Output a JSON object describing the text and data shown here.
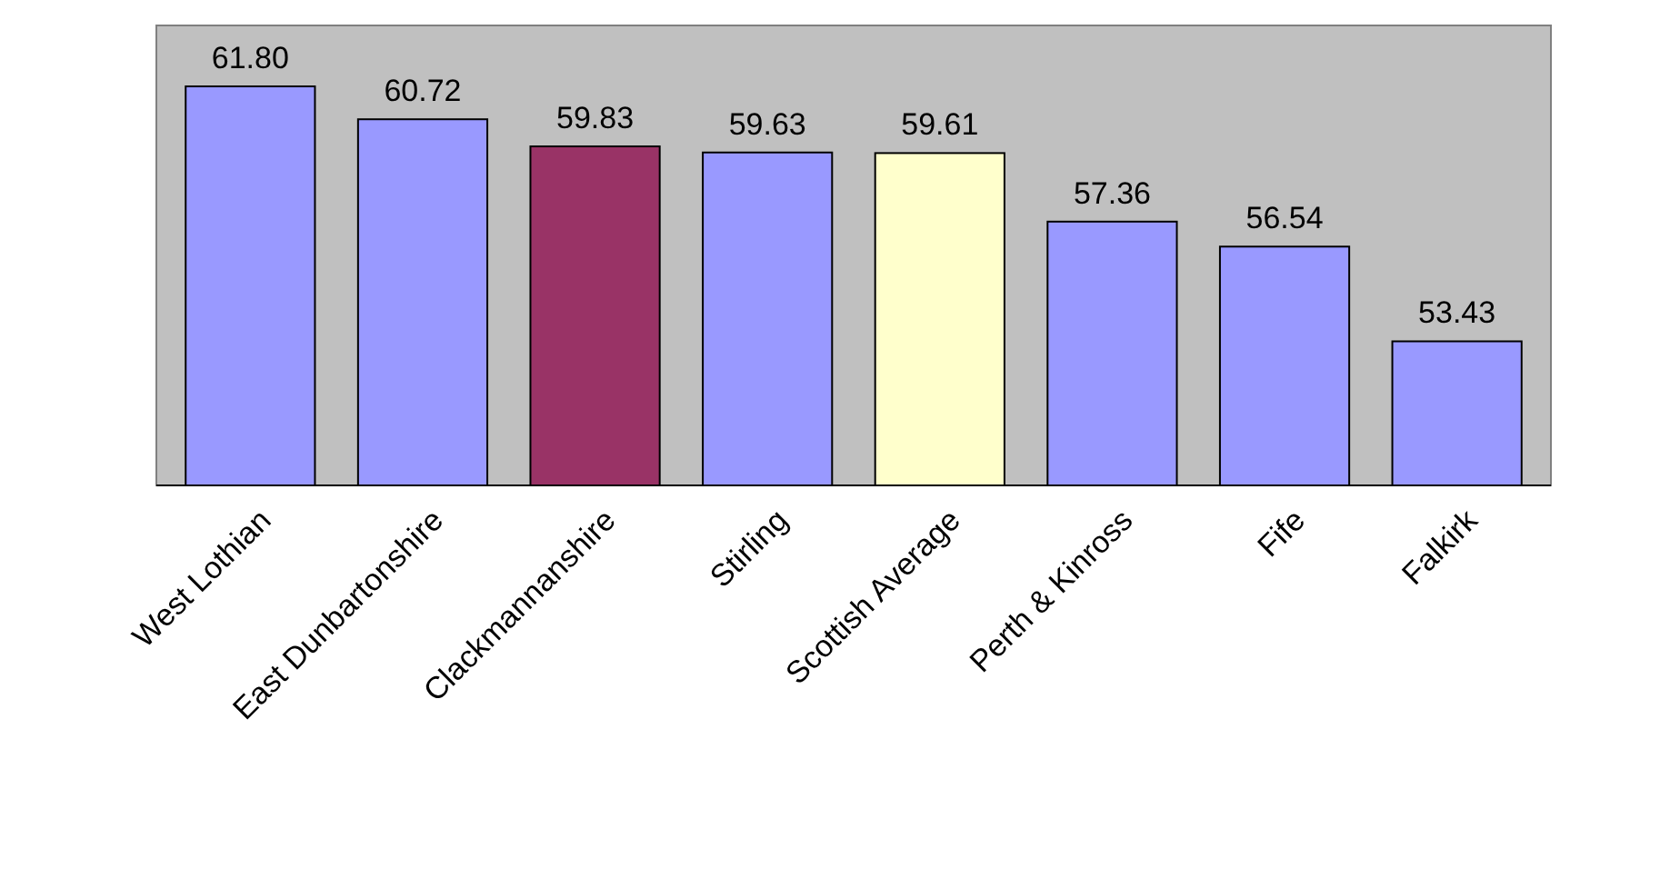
{
  "chart_data": {
    "type": "bar",
    "categories": [
      "West Lothian",
      "East Dunbartonshire",
      "Clackmannanshire",
      "Stirling",
      "Scottish Average",
      "Perth & Kinross",
      "Fife",
      "Falkirk"
    ],
    "values": [
      61.8,
      60.72,
      59.83,
      59.63,
      59.61,
      57.36,
      56.54,
      53.43
    ],
    "colors": [
      "#9999ff",
      "#9999ff",
      "#993366",
      "#9999ff",
      "#ffffcc",
      "#9999ff",
      "#9999ff",
      "#9999ff"
    ],
    "value_labels": [
      "61.80",
      "60.72",
      "59.83",
      "59.63",
      "59.61",
      "57.36",
      "56.54",
      "53.43"
    ],
    "ylim": [
      48.7,
      63.8
    ],
    "tick_labels": "x"
  }
}
